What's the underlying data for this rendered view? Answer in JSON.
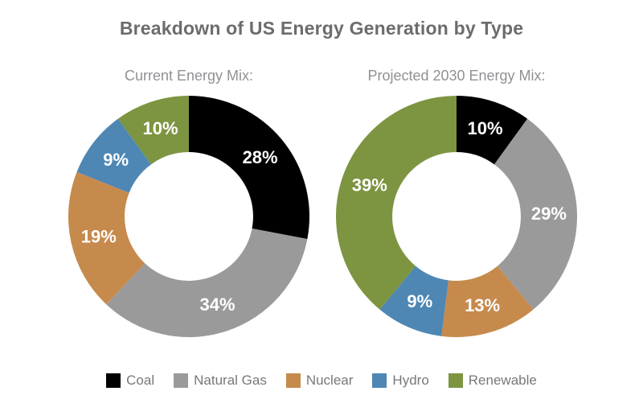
{
  "title": "Breakdown of US Energy Generation by Type",
  "colors": {
    "coal": "#000000",
    "natural_gas": "#9a9a9a",
    "nuclear": "#c68a4d",
    "hydro": "#4e87b4",
    "renewable": "#7d9441",
    "title_text": "#6b6c6e",
    "subtitle_text": "#8f9194",
    "legend_text": "#77787b",
    "slice_label_text": "#ffffff"
  },
  "chart_data": [
    {
      "type": "pie",
      "subtype": "donut",
      "title": "Current Energy Mix:",
      "categories": [
        "Coal",
        "Natural Gas",
        "Nuclear",
        "Hydro",
        "Renewable"
      ],
      "values": [
        28,
        34,
        19,
        9,
        10
      ],
      "labels": [
        "28%",
        "34%",
        "19%",
        "9%",
        "10%"
      ],
      "colors": [
        "#000000",
        "#9a9a9a",
        "#c68a4d",
        "#4e87b4",
        "#7d9441"
      ],
      "start_angle_deg": 0,
      "direction": "clockwise",
      "inner_radius_ratio": 0.533,
      "legend_position": "bottom"
    },
    {
      "type": "pie",
      "subtype": "donut",
      "title": "Projected 2030 Energy Mix:",
      "categories": [
        "Coal",
        "Natural Gas",
        "Nuclear",
        "Hydro",
        "Renewable"
      ],
      "values": [
        10,
        29,
        13,
        9,
        39
      ],
      "labels": [
        "10%",
        "29%",
        "13%",
        "9%",
        "39%"
      ],
      "colors": [
        "#000000",
        "#9a9a9a",
        "#c68a4d",
        "#4e87b4",
        "#7d9441"
      ],
      "start_angle_deg": 0,
      "direction": "clockwise",
      "inner_radius_ratio": 0.533,
      "legend_position": "bottom"
    }
  ],
  "legend": {
    "items": [
      {
        "label": "Coal",
        "color": "#000000"
      },
      {
        "label": "Natural Gas",
        "color": "#9a9a9a"
      },
      {
        "label": "Nuclear",
        "color": "#c68a4d"
      },
      {
        "label": "Hydro",
        "color": "#4e87b4"
      },
      {
        "label": "Renewable",
        "color": "#7d9441"
      }
    ]
  }
}
